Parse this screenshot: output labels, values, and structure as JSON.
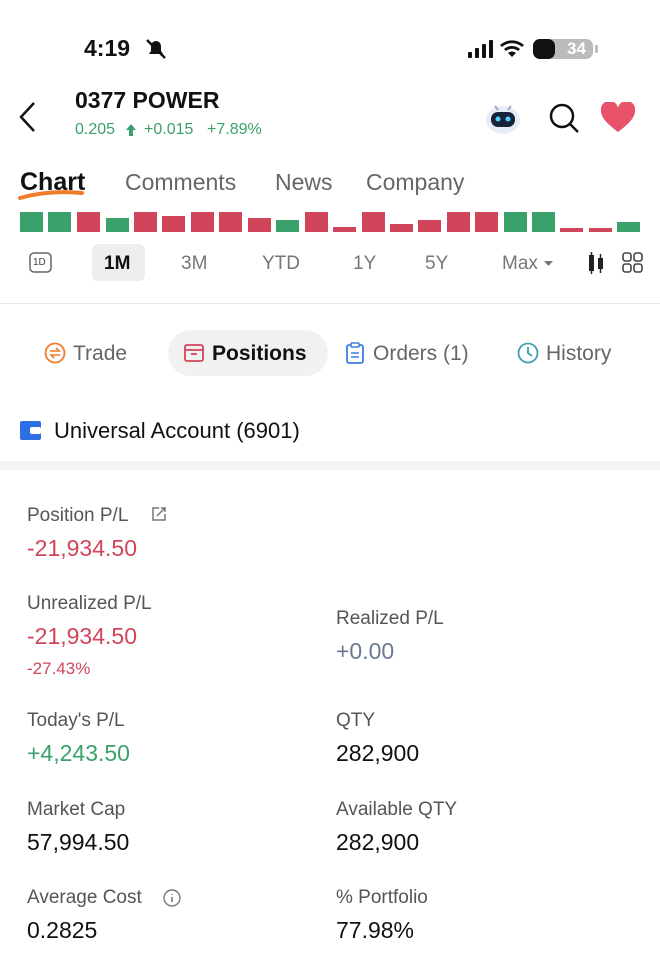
{
  "status_bar": {
    "time": "4:19",
    "battery": "34"
  },
  "header": {
    "symbol": "0377  POWER",
    "price": "0.205",
    "change": "+0.015",
    "change_pct": "+7.89%"
  },
  "tabs": [
    "Chart",
    "Comments",
    "News",
    "Company"
  ],
  "periods": [
    "1M",
    "3M",
    "YTD",
    "1Y",
    "5Y",
    "Max"
  ],
  "period_icon": "1D",
  "sub_tabs": [
    "Trade",
    "Positions",
    "Orders (1)",
    "History"
  ],
  "account": "Universal Account (6901)",
  "fields": [
    {
      "label": "Position P/L",
      "value": "-21,934.50"
    },
    {
      "label": "Unrealized P/L",
      "value": "-21,934.50",
      "note": "-27.43%"
    },
    {
      "label": "Realized P/L",
      "value": "+0.00"
    },
    {
      "label": "Today's P/L",
      "value": "+4,243.50"
    },
    {
      "label": "QTY",
      "value": "282,900"
    },
    {
      "label": "Market Cap",
      "value": "57,994.50"
    },
    {
      "label": "Available QTY",
      "value": "282,900"
    },
    {
      "label": "Average Cost",
      "value": "0.2825"
    },
    {
      "label": "% Portfolio",
      "value": "77.98%"
    }
  ]
}
